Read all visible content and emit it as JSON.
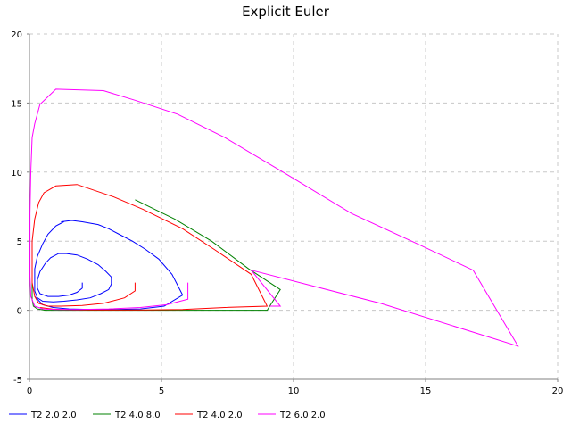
{
  "chart_data": {
    "type": "line",
    "title": "Explicit Euler",
    "xlabel": "",
    "ylabel": "",
    "xlim": [
      0,
      20
    ],
    "ylim": [
      -5,
      20
    ],
    "x_ticks": [
      0,
      5,
      10,
      15,
      20
    ],
    "y_ticks": [
      -5,
      0,
      5,
      10,
      15,
      20
    ],
    "grid": true,
    "legend_position": "bottom",
    "series": [
      {
        "name": "T2 2.0 2.0",
        "color": "#0000ff",
        "points": [
          [
            2.0,
            2.0
          ],
          [
            2.0,
            1.6
          ],
          [
            1.8,
            1.3
          ],
          [
            1.5,
            1.1
          ],
          [
            1.1,
            1.0
          ],
          [
            0.7,
            1.0
          ],
          [
            0.4,
            1.2
          ],
          [
            0.3,
            1.6
          ],
          [
            0.3,
            2.2
          ],
          [
            0.4,
            2.8
          ],
          [
            0.6,
            3.4
          ],
          [
            0.8,
            3.8
          ],
          [
            1.1,
            4.1
          ],
          [
            1.4,
            4.1
          ],
          [
            1.8,
            4.0
          ],
          [
            2.2,
            3.7
          ],
          [
            2.6,
            3.3
          ],
          [
            2.9,
            2.8
          ],
          [
            3.1,
            2.4
          ],
          [
            3.1,
            1.9
          ],
          [
            3.0,
            1.5
          ],
          [
            2.7,
            1.2
          ],
          [
            2.3,
            0.9
          ],
          [
            1.8,
            0.75
          ],
          [
            1.3,
            0.65
          ],
          [
            0.9,
            0.6
          ],
          [
            0.5,
            0.65
          ],
          [
            0.3,
            0.9
          ],
          [
            0.2,
            1.4
          ],
          [
            0.2,
            2.1
          ],
          [
            0.2,
            3.0
          ],
          [
            0.3,
            3.9
          ],
          [
            0.5,
            4.8
          ],
          [
            0.7,
            5.5
          ],
          [
            1.0,
            6.1
          ],
          [
            1.3,
            6.4
          ],
          [
            1.2,
            6.4
          ],
          [
            1.6,
            6.5
          ],
          [
            2.0,
            6.4
          ],
          [
            2.6,
            6.2
          ],
          [
            3.0,
            5.9
          ],
          [
            3.4,
            5.5
          ],
          [
            3.9,
            5.0
          ],
          [
            4.4,
            4.4
          ],
          [
            4.9,
            3.7
          ],
          [
            5.4,
            2.6
          ],
          [
            5.8,
            1.1
          ],
          [
            5.1,
            0.3
          ],
          [
            4.2,
            0.1
          ],
          [
            3.3,
            0.05
          ],
          [
            2.4,
            0.05
          ],
          [
            1.5,
            0.1
          ],
          [
            0.9,
            0.2
          ],
          [
            0.5,
            0.4
          ],
          [
            0.3,
            0.8
          ],
          [
            0.2,
            1.0
          ]
        ]
      },
      {
        "name": "T2 4.0 8.0",
        "color": "#008000",
        "points": [
          [
            4.0,
            8.0
          ],
          [
            5.5,
            6.6
          ],
          [
            6.9,
            5.0
          ],
          [
            8.3,
            3.0
          ],
          [
            9.5,
            1.5
          ],
          [
            9.0,
            0.0
          ],
          [
            7.2,
            0.0
          ],
          [
            5.2,
            0.0
          ],
          [
            3.4,
            0.0
          ],
          [
            2.0,
            0.0
          ],
          [
            1.1,
            0.0
          ],
          [
            0.6,
            0.0
          ],
          [
            0.3,
            0.1
          ],
          [
            0.15,
            0.3
          ],
          [
            0.1,
            0.8
          ],
          [
            0.1,
            1.5
          ],
          [
            0.1,
            2.5
          ],
          [
            0.1,
            3.5
          ]
        ]
      },
      {
        "name": "T2 4.0 2.0",
        "color": "#ff0000",
        "points": [
          [
            4.0,
            2.0
          ],
          [
            4.0,
            1.4
          ],
          [
            3.6,
            0.9
          ],
          [
            2.8,
            0.5
          ],
          [
            2.0,
            0.35
          ],
          [
            1.2,
            0.3
          ],
          [
            0.7,
            0.3
          ],
          [
            0.35,
            0.5
          ],
          [
            0.2,
            1.0
          ],
          [
            0.1,
            2.0
          ],
          [
            0.1,
            3.4
          ],
          [
            0.1,
            5.0
          ],
          [
            0.2,
            6.6
          ],
          [
            0.35,
            7.8
          ],
          [
            0.55,
            8.5
          ],
          [
            1.0,
            9.0
          ],
          [
            1.8,
            9.1
          ],
          [
            3.2,
            8.2
          ],
          [
            4.3,
            7.3
          ],
          [
            5.8,
            5.9
          ],
          [
            7.0,
            4.4
          ],
          [
            8.4,
            2.6
          ],
          [
            9.0,
            0.3
          ],
          [
            7.4,
            0.2
          ],
          [
            5.8,
            0.05
          ],
          [
            4.3,
            0.02
          ],
          [
            2.9,
            0.02
          ],
          [
            1.7,
            0.03
          ],
          [
            0.9,
            0.08
          ],
          [
            0.4,
            0.2
          ]
        ]
      },
      {
        "name": "T2 6.0 2.0",
        "color": "#ff00ff",
        "points": [
          [
            6.0,
            2.0
          ],
          [
            6.0,
            0.8
          ],
          [
            5.2,
            0.4
          ],
          [
            4.2,
            0.2
          ],
          [
            3.0,
            0.1
          ],
          [
            1.8,
            0.05
          ],
          [
            1.0,
            0.05
          ],
          [
            0.5,
            0.1
          ],
          [
            0.2,
            0.3
          ],
          [
            0.05,
            1.0
          ],
          [
            0.02,
            2.5
          ],
          [
            0.02,
            4.5
          ],
          [
            0.02,
            7.0
          ],
          [
            0.05,
            10.0
          ],
          [
            0.1,
            12.5
          ],
          [
            0.2,
            13.5
          ],
          [
            0.4,
            14.9
          ],
          [
            1.0,
            16.0
          ],
          [
            2.8,
            15.9
          ],
          [
            4.0,
            15.2
          ],
          [
            5.6,
            14.2
          ],
          [
            7.4,
            12.5
          ],
          [
            9.6,
            10.0
          ],
          [
            12.2,
            7.0
          ],
          [
            14.7,
            4.8
          ],
          [
            16.8,
            2.9
          ],
          [
            18.5,
            -2.6
          ],
          [
            13.3,
            0.5
          ],
          [
            8.4,
            2.9
          ],
          [
            9.5,
            0.3
          ],
          [
            9.1,
            0.3
          ]
        ]
      }
    ]
  }
}
